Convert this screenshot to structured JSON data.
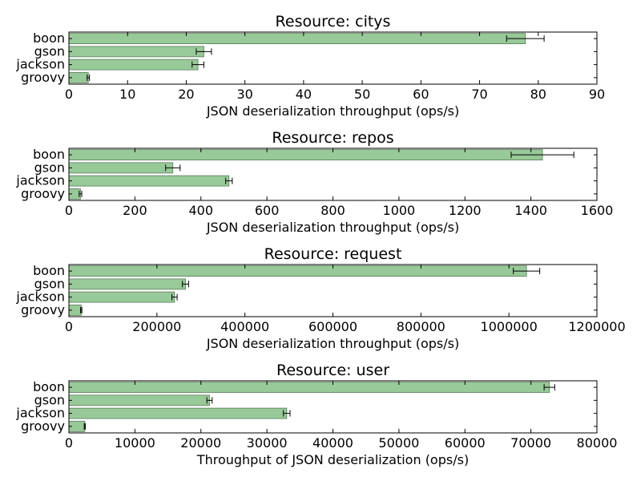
{
  "chart_data": [
    {
      "type": "bar",
      "orientation": "horizontal",
      "title": "Resource: citys",
      "xlabel": "JSON deserialization throughput (ops/s)",
      "categories": [
        "boon",
        "gson",
        "jackson",
        "groovy"
      ],
      "values": [
        77.8,
        23.0,
        22.0,
        3.3
      ],
      "errors": [
        3.2,
        1.3,
        1.0,
        0.2
      ],
      "xlim": [
        0,
        90
      ],
      "ticks": [
        0,
        10,
        20,
        30,
        40,
        50,
        60,
        70,
        80,
        90
      ],
      "tick_labels": [
        "0",
        "10",
        "20",
        "30",
        "40",
        "50",
        "60",
        "70",
        "80",
        "90"
      ],
      "bar_color": "#98c998",
      "grid": false
    },
    {
      "type": "bar",
      "orientation": "horizontal",
      "title": "Resource: repos",
      "xlabel": "JSON deserialization throughput (ops/s)",
      "categories": [
        "boon",
        "gson",
        "jackson",
        "groovy"
      ],
      "values": [
        1435,
        315,
        485,
        35
      ],
      "errors": [
        95,
        22,
        10,
        4
      ],
      "xlim": [
        0,
        1600
      ],
      "ticks": [
        0,
        200,
        400,
        600,
        800,
        1000,
        1200,
        1400,
        1600
      ],
      "tick_labels": [
        "0",
        "200",
        "400",
        "600",
        "800",
        "1000",
        "1200",
        "1400",
        "1600"
      ],
      "bar_color": "#98c998",
      "grid": false
    },
    {
      "type": "bar",
      "orientation": "horizontal",
      "title": "Resource: request",
      "xlabel": "JSON deserialization throughput (ops/s)",
      "categories": [
        "boon",
        "gson",
        "jackson",
        "groovy"
      ],
      "values": [
        1040000,
        265000,
        240000,
        28000
      ],
      "errors": [
        30000,
        7000,
        6000,
        1500
      ],
      "xlim": [
        0,
        1200000
      ],
      "ticks": [
        0,
        200000,
        400000,
        600000,
        800000,
        1000000,
        1200000
      ],
      "tick_labels": [
        "0",
        "200000",
        "400000",
        "600000",
        "800000",
        "1000000",
        "1200000"
      ],
      "bar_color": "#98c998",
      "grid": false
    },
    {
      "type": "bar",
      "orientation": "horizontal",
      "title": "Resource: user",
      "xlabel": "Throughput of JSON deserialization (ops/s)",
      "categories": [
        "boon",
        "gson",
        "jackson",
        "groovy"
      ],
      "values": [
        72800,
        21300,
        33000,
        2400
      ],
      "errors": [
        800,
        400,
        500,
        80
      ],
      "xlim": [
        0,
        80000
      ],
      "ticks": [
        0,
        10000,
        20000,
        30000,
        40000,
        50000,
        60000,
        70000,
        80000
      ],
      "tick_labels": [
        "0",
        "10000",
        "20000",
        "30000",
        "40000",
        "50000",
        "60000",
        "70000",
        "80000"
      ],
      "bar_color": "#98c998",
      "grid": false
    }
  ]
}
